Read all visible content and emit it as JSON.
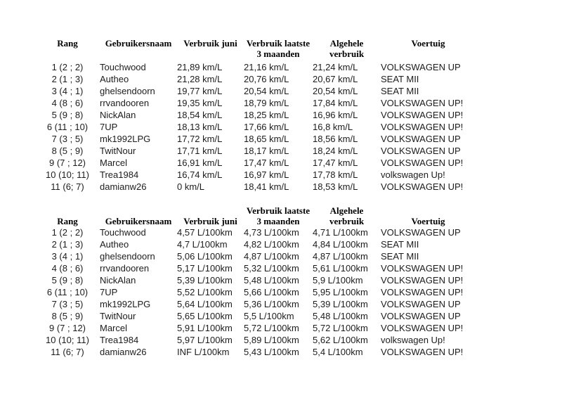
{
  "page": {
    "background": "#ffffff",
    "text_color": "#1c1c1c",
    "header_text_color": "#000000"
  },
  "tables": [
    {
      "unit": "km/L",
      "columns": [
        {
          "lines": [
            "Rang"
          ]
        },
        {
          "lines": [
            "Gebruikersnaam"
          ]
        },
        {
          "lines": [
            "Verbruik juni"
          ]
        },
        {
          "lines": [
            "Verbruik laatste",
            "3 maanden"
          ]
        },
        {
          "lines": [
            "Algehele",
            "verbruik"
          ]
        },
        {
          "lines": [
            "Voertuig"
          ]
        }
      ],
      "rows": [
        [
          "1 (2 ; 2)",
          "Touchwood",
          "21,89 km/L",
          "21,16 km/L",
          "21,24 km/L",
          "VOLKSWAGEN UP"
        ],
        [
          "2 (1 ; 3)",
          "Autheo",
          "21,28 km/L",
          "20,76 km/L",
          "20,67 km/L",
          "SEAT MII"
        ],
        [
          "3 (4 ; 1)",
          "ghelsendoorn",
          "19,77 km/L",
          "20,54 km/L",
          "20,54 km/L",
          "SEAT MII"
        ],
        [
          "4 (8 ; 6)",
          "rrvandooren",
          "19,35 km/L",
          "18,79 km/L",
          "17,84 km/L",
          "VOLKSWAGEN UP!"
        ],
        [
          "5 (9 ; 8)",
          "NickAlan",
          "18,54 km/L",
          "18,25 km/L",
          "16,96 km/L",
          "VOLKSWAGEN UP!"
        ],
        [
          "6 (11 ; 10)",
          "7UP",
          "18,13 km/L",
          "17,66 km/L",
          "16,8 km/L",
          "VOLKSWAGEN UP!"
        ],
        [
          "7 (3 ; 5)",
          "mk1992LPG",
          "17,72 km/L",
          "18,65 km/L",
          "18,56 km/L",
          "VOLKSWAGEN UP"
        ],
        [
          "8 (5 ; 9)",
          "TwitNour",
          "17,71 km/L",
          "18,17 km/L",
          "18,24 km/L",
          "VOLKSWAGEN UP"
        ],
        [
          "9 (7 ; 12)",
          "Marcel",
          "16,91 km/L",
          "17,47 km/L",
          "17,47 km/L",
          "VOLKSWAGEN UP!"
        ],
        [
          "10 (10; 11)",
          "Trea1984",
          "16,74 km/L",
          "16,97 km/L",
          "17,78 km/L",
          "volkswagen Up!"
        ],
        [
          "11 (6; 7)",
          "damianw26",
          "0 km/L",
          "18,41 km/L",
          "18,53 km/L",
          "VOLKSWAGEN UP!"
        ]
      ]
    },
    {
      "unit": "L/100km",
      "columns": [
        {
          "lines": [
            "Rang"
          ]
        },
        {
          "lines": [
            "Gebruikersnaam"
          ]
        },
        {
          "lines": [
            "Verbruik juni"
          ]
        },
        {
          "lines": [
            "Verbruik laatste",
            "3 maanden"
          ]
        },
        {
          "lines": [
            "Algehele",
            "verbruik"
          ]
        },
        {
          "lines": [
            "Voertuig"
          ]
        }
      ],
      "rows": [
        [
          "1 (2 ; 2)",
          "Touchwood",
          "4,57 L/100km",
          "4,73 L/100km",
          "4,71 L/100km",
          "VOLKSWAGEN UP"
        ],
        [
          "2 (1 ; 3)",
          "Autheo",
          "4,7 L/100km",
          "4,82 L/100km",
          "4,84 L/100km",
          "SEAT MII"
        ],
        [
          "3 (4 ; 1)",
          "ghelsendoorn",
          "5,06 L/100km",
          "4,87 L/100km",
          "4,87 L/100km",
          "SEAT MII"
        ],
        [
          "4 (8 ; 6)",
          "rrvandooren",
          "5,17 L/100km",
          "5,32 L/100km",
          "5,61 L/100km",
          "VOLKSWAGEN UP!"
        ],
        [
          "5 (9 ; 8)",
          "NickAlan",
          "5,39 L/100km",
          "5,48 L/100km",
          "5,9 L/100km",
          "VOLKSWAGEN UP!"
        ],
        [
          "6 (11 ; 10)",
          "7UP",
          "5,52 L/100km",
          "5,66 L/100km",
          "5,95 L/100km",
          "VOLKSWAGEN UP!"
        ],
        [
          "7 (3 ; 5)",
          "mk1992LPG",
          "5,64 L/100km",
          "5,36 L/100km",
          "5,39 L/100km",
          "VOLKSWAGEN UP"
        ],
        [
          "8 (5 ; 9)",
          "TwitNour",
          "5,65 L/100km",
          "5,5 L/100km",
          "5,48 L/100km",
          "VOLKSWAGEN UP"
        ],
        [
          "9 (7 ; 12)",
          "Marcel",
          "5,91 L/100km",
          "5,72 L/100km",
          "5,72 L/100km",
          "VOLKSWAGEN UP!"
        ],
        [
          "10 (10; 11)",
          "Trea1984",
          "5,97 L/100km",
          "5,89 L/100km",
          "5,62 L/100km",
          "volkswagen Up!"
        ],
        [
          "11 (6; 7)",
          "damianw26",
          "INF L/100km",
          "5,43 L/100km",
          "5,4 L/100km",
          "VOLKSWAGEN UP!"
        ]
      ]
    }
  ]
}
